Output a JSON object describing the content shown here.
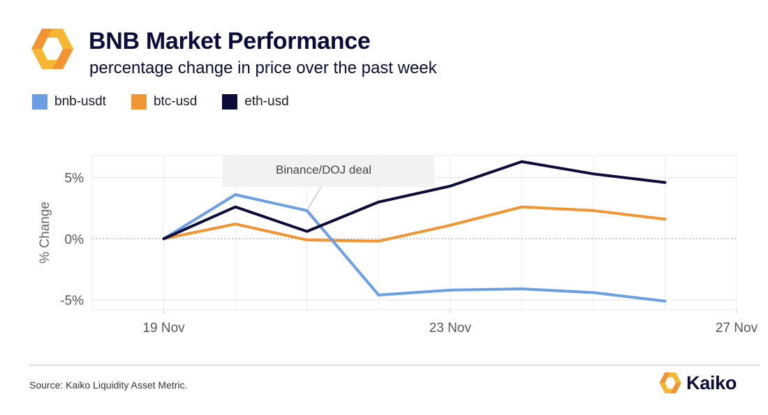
{
  "header": {
    "title": "BNB Market Performance",
    "subtitle": "percentage change in price over the past week",
    "logo_icon": "kaiko-hexagon-icon"
  },
  "colors": {
    "title": "#0b0b3c",
    "bnb": "#6a9fe6",
    "btc": "#f29432",
    "eth": "#0b0b3c",
    "brand_orange": "#f29432",
    "brand_yellow": "#f7b733"
  },
  "legend": {
    "placement": "top-left",
    "items": [
      {
        "label": "bnb-usdt",
        "color": "#6a9fe6"
      },
      {
        "label": "btc-usd",
        "color": "#f29432"
      },
      {
        "label": "eth-usd",
        "color": "#0b0b3c"
      }
    ]
  },
  "chart_data": {
    "type": "line",
    "ylabel": "% Change",
    "x_start": "19 Nov",
    "x_step_days": 1,
    "x": [
      "19 Nov",
      "20 Nov",
      "21 Nov",
      "22 Nov",
      "23 Nov",
      "24 Nov",
      "25 Nov",
      "26 Nov"
    ],
    "xticks": [
      "19 Nov",
      "23 Nov",
      "27 Nov"
    ],
    "xlim": [
      "18 Nov",
      "27 Nov"
    ],
    "yticks": [
      -5,
      0,
      5
    ],
    "ytick_labels": [
      "-5%",
      "0%",
      "5%"
    ],
    "ylim": [
      -5.8,
      6.8
    ],
    "grid": true,
    "zero_line": "dashed",
    "series": [
      {
        "name": "bnb-usdt",
        "color": "#6a9fe6",
        "values": [
          0.0,
          3.6,
          2.3,
          -4.6,
          -4.2,
          -4.1,
          -4.4,
          -5.1
        ]
      },
      {
        "name": "btc-usd",
        "color": "#f29432",
        "values": [
          0.0,
          1.2,
          -0.1,
          -0.2,
          1.1,
          2.6,
          2.3,
          1.6
        ]
      },
      {
        "name": "eth-usd",
        "color": "#0b0b3c",
        "values": [
          0.0,
          2.6,
          0.6,
          3.0,
          4.3,
          6.3,
          5.3,
          4.6
        ]
      }
    ],
    "annotations": [
      {
        "text": "Binance/DOJ deal",
        "x": "21 Nov",
        "y": 2.3
      }
    ]
  },
  "footer": {
    "source": "Source: Kaiko Liquidity Asset Metric.",
    "brand": "Kaiko",
    "brand_icon": "kaiko-logo-icon"
  }
}
